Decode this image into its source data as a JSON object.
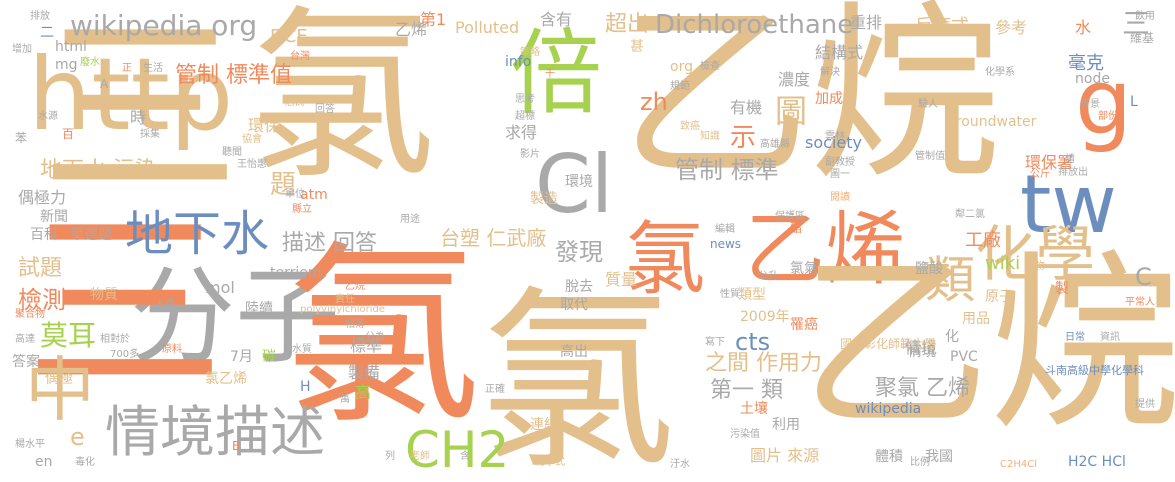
{
  "palette": {
    "tan": "#e3c08b",
    "orange": "#f08a5d",
    "green": "#a7d24f",
    "gray": "#a9a9a9",
    "blue": "#6c8ebf",
    "peach": "#f3b07b",
    "lightgreen": "#b9dc79"
  },
  "words": [
    {
      "text": "三",
      "color": "#e3c08b"
    },
    {
      "text": "氯",
      "color": "#e3c08b"
    },
    {
      "text": "乙烷",
      "color": "#e3c08b"
    },
    {
      "text": "http",
      "color": "#e3c08b"
    },
    {
      "text": "倍",
      "color": "#a7d24f"
    },
    {
      "text": "Cl",
      "color": "#a9a9a9"
    },
    {
      "text": "g",
      "color": "#f08a5d"
    },
    {
      "text": "tw",
      "color": "#6c8ebf"
    },
    {
      "text": "氯",
      "color": "#f08a5d"
    },
    {
      "text": "乙烯",
      "color": "#f08a5d"
    },
    {
      "text": "化學",
      "color": "#e3c08b"
    },
    {
      "text": "類",
      "color": "#e3c08b"
    },
    {
      "text": "分子",
      "color": "#a9a9a9"
    },
    {
      "text": "三",
      "color": "#f08a5d"
    },
    {
      "text": "氯",
      "color": "#f08a5d"
    },
    {
      "text": "氯",
      "color": "#e3c08b"
    },
    {
      "text": "乙烷",
      "color": "#e3c08b"
    },
    {
      "text": "中",
      "color": "#e3c08b"
    },
    {
      "text": "情境",
      "color": "#a9a9a9"
    },
    {
      "text": "描述",
      "color": "#a9a9a9"
    },
    {
      "text": "CH2",
      "color": "#a7d24f"
    },
    {
      "text": "地下水",
      "color": "#6c8ebf"
    },
    {
      "text": "wikipedia org",
      "color": "#a9a9a9"
    },
    {
      "text": "Dichloroethane",
      "color": "#a9a9a9"
    },
    {
      "text": "超出",
      "color": "#e3c08b"
    },
    {
      "text": "管制 標準值",
      "color": "#f08a5d"
    },
    {
      "text": "管制 標準",
      "color": "#a9a9a9"
    },
    {
      "text": "地下水 污染",
      "color": "#e3c08b"
    },
    {
      "text": "描述 回答",
      "color": "#a9a9a9"
    },
    {
      "text": "台塑 仁武廠",
      "color": "#e3c08b"
    },
    {
      "text": "發現",
      "color": "#a9a9a9"
    },
    {
      "text": "莫耳",
      "color": "#a7d24f"
    },
    {
      "text": "檢測",
      "color": "#f08a5d"
    },
    {
      "text": "試題",
      "color": "#e3c08b"
    },
    {
      "text": "題",
      "color": "#e3c08b"
    },
    {
      "text": "zh",
      "color": "#f08a5d"
    },
    {
      "text": "cts",
      "color": "#6c8ebf"
    },
    {
      "text": "圖",
      "color": "#e3c08b"
    },
    {
      "text": "示",
      "color": "#f08a5d"
    },
    {
      "text": "聚氯 乙烯",
      "color": "#a9a9a9"
    },
    {
      "text": "第一 類",
      "color": "#a9a9a9"
    },
    {
      "text": "之間 作用力",
      "color": "#e3c08b"
    },
    {
      "text": "工廠",
      "color": "#f08a5d"
    },
    {
      "text": "wiki",
      "color": "#a7d24f"
    },
    {
      "text": "C",
      "color": "#a9a9a9"
    },
    {
      "text": "三",
      "color": "#a9a9a9"
    },
    {
      "text": "水",
      "color": "#f08a5d"
    },
    {
      "text": "毫克",
      "color": "#6c8ebf"
    },
    {
      "text": "情境",
      "color": "#a9a9a9"
    },
    {
      "text": "e",
      "color": "#e3c08b"
    },
    {
      "text": "DCE",
      "color": "#e3c08b"
    },
    {
      "text": "乙烯",
      "color": "#a9a9a9"
    },
    {
      "text": "第1",
      "color": "#f08a5d"
    },
    {
      "text": "Polluted",
      "color": "#e3c08b"
    },
    {
      "text": "含有",
      "color": "#a9a9a9"
    },
    {
      "text": "重排",
      "color": "#a9a9a9"
    },
    {
      "text": "反應式",
      "color": "#e3c08b"
    },
    {
      "text": "參考",
      "color": "#e3c08b"
    },
    {
      "text": "結構式",
      "color": "#a9a9a9"
    },
    {
      "text": "Groundwater",
      "color": "#e3c08b"
    },
    {
      "text": "環保署",
      "color": "#f08a5d"
    },
    {
      "text": "society",
      "color": "#6c8ebf"
    },
    {
      "text": "濃度",
      "color": "#a9a9a9"
    },
    {
      "text": "加成",
      "color": "#f08a5d"
    },
    {
      "text": "有機",
      "color": "#a9a9a9"
    },
    {
      "text": "求得",
      "color": "#a9a9a9"
    },
    {
      "text": "info",
      "color": "#6c8ebf"
    },
    {
      "text": "org",
      "color": "#e3c08b"
    },
    {
      "text": "node",
      "color": "#a9a9a9"
    },
    {
      "text": "L",
      "color": "#6c8ebf"
    },
    {
      "text": "mg",
      "color": "#a9a9a9"
    },
    {
      "text": "html",
      "color": "#a9a9a9"
    },
    {
      "text": "時",
      "color": "#a9a9a9"
    },
    {
      "text": "環保",
      "color": "#e3c08b"
    },
    {
      "text": "製造",
      "color": "#e3c08b"
    },
    {
      "text": "環境",
      "color": "#a9a9a9"
    },
    {
      "text": "atm",
      "color": "#f08a5d"
    },
    {
      "text": "新聞",
      "color": "#a9a9a9"
    },
    {
      "text": "單選題",
      "color": "#a9a9a9"
    },
    {
      "text": "百科",
      "color": "#a9a9a9"
    },
    {
      "text": "偶極力",
      "color": "#a9a9a9"
    },
    {
      "text": "terriem",
      "color": "#a9a9a9"
    },
    {
      "text": "mol",
      "color": "#a9a9a9"
    },
    {
      "text": "物質",
      "color": "#e3c08b"
    },
    {
      "text": "陸續",
      "color": "#a9a9a9"
    },
    {
      "text": "標準",
      "color": "#a9a9a9"
    },
    {
      "text": "製備",
      "color": "#a9a9a9"
    },
    {
      "text": "高",
      "color": "#a7d24f"
    },
    {
      "text": "碳",
      "color": "#a7d24f"
    },
    {
      "text": "7月",
      "color": "#a9a9a9"
    },
    {
      "text": "H",
      "color": "#6c8ebf"
    },
    {
      "text": "答案",
      "color": "#a9a9a9"
    },
    {
      "text": "偶極",
      "color": "#e3c08b"
    },
    {
      "text": "en",
      "color": "#a9a9a9"
    },
    {
      "text": "氯乙烯",
      "color": "#e3c08b"
    },
    {
      "text": "質量",
      "color": "#e3c08b"
    },
    {
      "text": "脫去",
      "color": "#a9a9a9"
    },
    {
      "text": "取代",
      "color": "#a9a9a9"
    },
    {
      "text": "2009年",
      "color": "#e3c08b"
    },
    {
      "text": "高出",
      "color": "#a9a9a9"
    },
    {
      "text": "類型",
      "color": "#e3c08b"
    },
    {
      "text": "氯氣",
      "color": "#a9a9a9"
    },
    {
      "text": "鹽酸",
      "color": "#a9a9a9"
    },
    {
      "text": "原子",
      "color": "#e3c08b"
    },
    {
      "text": "製",
      "color": "#f08a5d"
    },
    {
      "text": "罹癌",
      "color": "#f08a5d"
    },
    {
      "text": "國立彰化師範大學",
      "color": "#e3c08b"
    },
    {
      "text": "情境",
      "color": "#a9a9a9"
    },
    {
      "text": "PVC",
      "color": "#a9a9a9"
    },
    {
      "text": "用品",
      "color": "#e3c08b"
    },
    {
      "text": "化",
      "color": "#a9a9a9"
    },
    {
      "text": "wikipedia",
      "color": "#6c8ebf"
    },
    {
      "text": "土壤",
      "color": "#f08a5d"
    },
    {
      "text": "利用",
      "color": "#a9a9a9"
    },
    {
      "text": "連結",
      "color": "#e3c08b"
    },
    {
      "text": "D",
      "color": "#e3c08b"
    },
    {
      "text": "圖片 來源",
      "color": "#e3c08b"
    },
    {
      "text": "體積",
      "color": "#a9a9a9"
    },
    {
      "text": "我國",
      "color": "#a9a9a9"
    },
    {
      "text": "H2C HCl",
      "color": "#6c8ebf"
    },
    {
      "text": "C2H4Cl",
      "color": "#f3b07b"
    },
    {
      "text": "斗南高級中學化學科",
      "color": "#6c8ebf"
    },
    {
      "text": "平常人",
      "color": "#f08a5d"
    },
    {
      "text": "日常",
      "color": "#6c8ebf"
    },
    {
      "text": "資訊",
      "color": "#a9a9a9"
    },
    {
      "text": "提供",
      "color": "#a9a9a9"
    },
    {
      "text": "楊水平",
      "color": "#a9a9a9"
    },
    {
      "text": "毒化",
      "color": "#a9a9a9"
    },
    {
      "text": "polyvinylchloride",
      "color": "#e3c08b"
    },
    {
      "text": "正確",
      "color": "#a9a9a9"
    },
    {
      "text": "汙水",
      "color": "#a9a9a9"
    },
    {
      "text": "污染值",
      "color": "#a9a9a9"
    },
    {
      "text": "比例",
      "color": "#a9a9a9"
    },
    {
      "text": "化學式",
      "color": "#e3c08b"
    },
    {
      "text": "老師",
      "color": "#e3c08b"
    },
    {
      "text": "列",
      "color": "#a9a9a9"
    },
    {
      "text": "含",
      "color": "#a9a9a9"
    },
    {
      "text": "排放",
      "color": "#a9a9a9"
    },
    {
      "text": "二",
      "color": "#6c8ebf"
    },
    {
      "text": "增加",
      "color": "#a9a9a9"
    },
    {
      "text": "廢水",
      "color": "#a7d24f"
    },
    {
      "text": "A",
      "color": "#a9a9a9"
    },
    {
      "text": "正",
      "color": "#f08a5d"
    },
    {
      "text": "生活",
      "color": "#a9a9a9"
    },
    {
      "text": "台灣",
      "color": "#f08a5d"
    },
    {
      "text": "策略",
      "color": "#e3c08b"
    },
    {
      "text": "千",
      "color": "#f08a5d"
    },
    {
      "text": "甚",
      "color": "#e3c08b"
    },
    {
      "text": "檢查",
      "color": "#a9a9a9"
    },
    {
      "text": "解決",
      "color": "#a9a9a9"
    },
    {
      "text": "化學系",
      "color": "#a9a9a9"
    },
    {
      "text": "飲用",
      "color": "#a9a9a9"
    },
    {
      "text": "維基",
      "color": "#a9a9a9"
    },
    {
      "text": "苯",
      "color": "#a9a9a9"
    },
    {
      "text": "水源",
      "color": "#a9a9a9"
    },
    {
      "text": "百",
      "color": "#f08a5d"
    },
    {
      "text": "採集",
      "color": "#a9a9a9"
    },
    {
      "text": "居民",
      "color": "#e3c08b"
    },
    {
      "text": "回答",
      "color": "#a9a9a9"
    },
    {
      "text": "規範",
      "color": "#a9a9a9"
    },
    {
      "text": "思考",
      "color": "#a9a9a9"
    },
    {
      "text": "超標",
      "color": "#a9a9a9"
    },
    {
      "text": "致癌",
      "color": "#e3c08b"
    },
    {
      "text": "驗人",
      "color": "#a9a9a9"
    },
    {
      "text": "背景",
      "color": "#a9a9a9"
    },
    {
      "text": "部份",
      "color": "#f08a5d"
    },
    {
      "text": "雲林",
      "color": "#a9a9a9"
    },
    {
      "text": "知識",
      "color": "#e3c08b"
    },
    {
      "text": "高雄縣",
      "color": "#a9a9a9"
    },
    {
      "text": "副教授",
      "color": "#a9a9a9"
    },
    {
      "text": "管制值",
      "color": "#a9a9a9"
    },
    {
      "text": "圖一",
      "color": "#a9a9a9"
    },
    {
      "text": "公斤",
      "color": "#f08a5d"
    },
    {
      "text": "請",
      "color": "#a9a9a9"
    },
    {
      "text": "排放出",
      "color": "#a9a9a9"
    },
    {
      "text": "閱讀",
      "color": "#f3b07b"
    },
    {
      "text": "鄰二氯",
      "color": "#a9a9a9"
    },
    {
      "text": "保護區",
      "color": "#a9a9a9"
    },
    {
      "text": "影片",
      "color": "#a9a9a9"
    },
    {
      "text": "聽聞",
      "color": "#a9a9a9"
    },
    {
      "text": "協會",
      "color": "#e3c08b"
    },
    {
      "text": "王怡惠",
      "color": "#a9a9a9"
    },
    {
      "text": "單位",
      "color": "#a9a9a9"
    },
    {
      "text": "縣立",
      "color": "#f08a5d"
    },
    {
      "text": "用途",
      "color": "#a9a9a9"
    },
    {
      "text": "編輯",
      "color": "#a9a9a9"
    },
    {
      "text": "news",
      "color": "#6c8ebf"
    },
    {
      "text": "酯",
      "color": "#f08a5d"
    },
    {
      "text": "合物",
      "color": "#e3c08b"
    },
    {
      "text": "公升",
      "color": "#a9a9a9"
    },
    {
      "text": "性質",
      "color": "#a9a9a9"
    },
    {
      "text": "人員",
      "color": "#a9a9a9"
    },
    {
      "text": "乙烷",
      "color": "#f08a5d"
    },
    {
      "text": "責任",
      "color": "#e3c08b"
    },
    {
      "text": "聚合物",
      "color": "#f08a5d"
    },
    {
      "text": "相簿",
      "color": "#a9a9a9"
    },
    {
      "text": "相對於",
      "color": "#a9a9a9"
    },
    {
      "text": "700多",
      "color": "#a9a9a9"
    },
    {
      "text": "高達",
      "color": "#a9a9a9"
    },
    {
      "text": "原料",
      "color": "#f08a5d"
    },
    {
      "text": "水質",
      "color": "#a9a9a9"
    },
    {
      "text": "分為",
      "color": "#a9a9a9"
    },
    {
      "text": "萬",
      "color": "#a9a9a9"
    },
    {
      "text": "寫下",
      "color": "#a9a9a9"
    },
    {
      "text": "B",
      "color": "#f08a5d"
    }
  ]
}
